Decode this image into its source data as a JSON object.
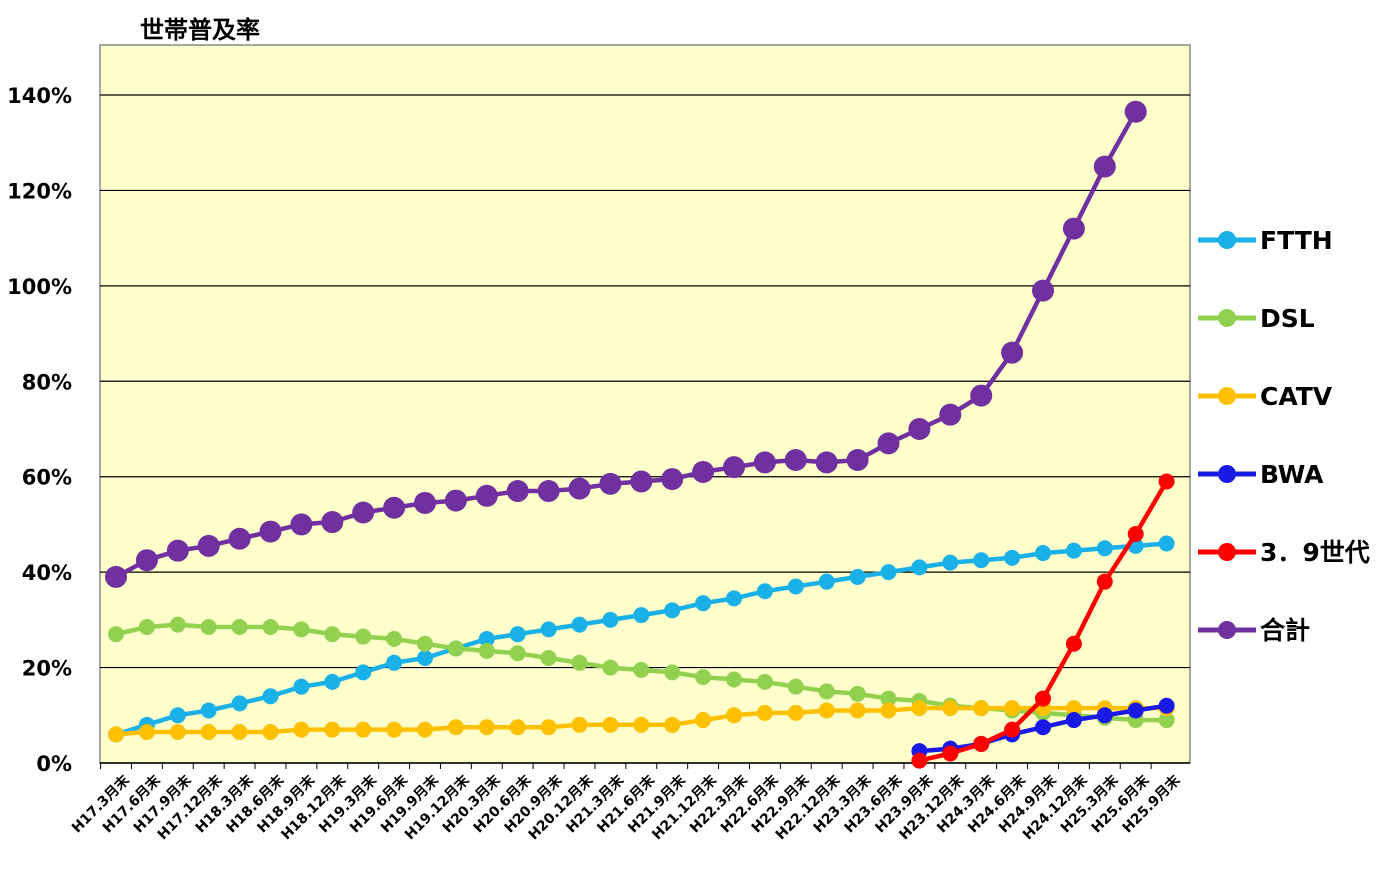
{
  "chart_data": {
    "type": "line",
    "ylabel": "世帯普及率",
    "xlabel": "",
    "ylim": [
      0,
      140
    ],
    "yticks": [
      "0%",
      "20%",
      "40%",
      "60%",
      "80%",
      "100%",
      "120%",
      "140%"
    ],
    "grid": true,
    "legend_position": "right",
    "background_color": "#FFFFCC",
    "categories": [
      "H17.3月末",
      "H17.6月末",
      "H17.9月末",
      "H17.12月末",
      "H18.3月末",
      "H18.6月末",
      "H18.9月末",
      "H18.12月末",
      "H19.3月末",
      "H19.6月末",
      "H19.9月末",
      "H19.12月末",
      "H20.3月末",
      "H20.6月末",
      "H20.9月末",
      "H20.12月末",
      "H21.3月末",
      "H21.6月末",
      "H21.9月末",
      "H21.12月末",
      "H22.3月末",
      "H22.6月末",
      "H22.9月末",
      "H22.12月末",
      "H23.3月末",
      "H23.6月末",
      "H23.9月末",
      "H23.12月末",
      "H24.3月末",
      "H24.6月末",
      "H24.9月末",
      "H24.12月末",
      "H25.3月末",
      "H25.6月末",
      "H25.9月末"
    ],
    "series": [
      {
        "name": "FTTH",
        "color": "#1AB0E8",
        "values": [
          6,
          8,
          10,
          11,
          12.5,
          14,
          16,
          17,
          19,
          21,
          22,
          24,
          26,
          27,
          28,
          29,
          30,
          31,
          32,
          33.5,
          34.5,
          36,
          37,
          38,
          39,
          40,
          41,
          42,
          42.5,
          43,
          44,
          44.5,
          45,
          45.5,
          46
        ]
      },
      {
        "name": "DSL",
        "color": "#92D050",
        "values": [
          27,
          28.5,
          29,
          28.5,
          28.5,
          28.5,
          28,
          27,
          26.5,
          26,
          25,
          24,
          23.5,
          23,
          22,
          21,
          20,
          19.5,
          19,
          18,
          17.5,
          17,
          16,
          15,
          14.5,
          13.5,
          13,
          12,
          11.5,
          11,
          10.5,
          10,
          9.5,
          9,
          9
        ]
      },
      {
        "name": "CATV",
        "color": "#FFC000",
        "values": [
          6,
          6.5,
          6.5,
          6.5,
          6.5,
          6.5,
          7,
          7,
          7,
          7,
          7,
          7.5,
          7.5,
          7.5,
          7.5,
          8,
          8,
          8,
          8,
          9,
          10,
          10.5,
          10.5,
          11,
          11,
          11,
          11.5,
          11.5,
          11.5,
          11.5,
          11.5,
          11.5,
          11.5,
          11.5,
          11.5
        ]
      },
      {
        "name": "BWA",
        "color": "#1A1AE6",
        "values": [
          null,
          null,
          null,
          null,
          null,
          null,
          null,
          null,
          null,
          null,
          null,
          null,
          null,
          null,
          null,
          null,
          null,
          null,
          null,
          null,
          null,
          null,
          null,
          null,
          null,
          null,
          2.5,
          3,
          4,
          6,
          7.5,
          9,
          10,
          11,
          12
        ]
      },
      {
        "name": "3.9世代",
        "color": "#FF0000",
        "values": [
          null,
          null,
          null,
          null,
          null,
          null,
          null,
          null,
          null,
          null,
          null,
          null,
          null,
          null,
          null,
          null,
          null,
          null,
          null,
          null,
          null,
          null,
          null,
          null,
          null,
          null,
          0.5,
          2,
          4,
          7,
          13.5,
          25,
          38,
          48,
          59
        ]
      },
      {
        "name": "合計",
        "color": "#7030A0",
        "values": [
          39,
          42.5,
          44.5,
          45.5,
          47,
          48.5,
          50,
          50.5,
          52.5,
          53.5,
          54.5,
          55,
          56,
          57,
          57,
          57.5,
          58.5,
          59,
          59.5,
          61,
          62,
          63,
          63.5,
          63,
          63.5,
          67,
          70,
          73,
          77,
          86,
          99,
          112,
          125,
          136.5,
          null
        ]
      }
    ],
    "legend": [
      {
        "name": "FTTH",
        "color": "#1AB0E8"
      },
      {
        "name": "DSL",
        "color": "#92D050"
      },
      {
        "name": "CATV",
        "color": "#FFC000"
      },
      {
        "name": "BWA",
        "color": "#1A1AE6"
      },
      {
        "name": "3．9世代",
        "color": "#FF0000"
      },
      {
        "name": "合計",
        "color": "#7030A0"
      }
    ]
  }
}
